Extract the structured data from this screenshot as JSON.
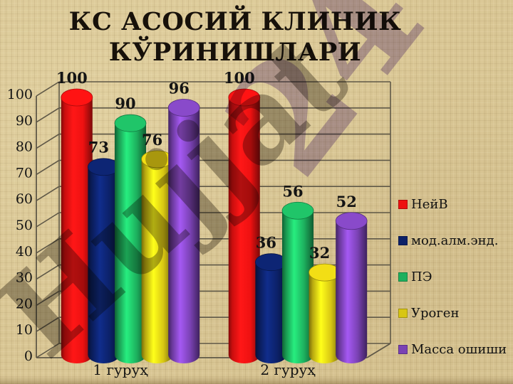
{
  "title": {
    "line1": "КС АСОСИЙ КЛИНИК",
    "line2": "КЎРИНИШЛАРИ"
  },
  "watermark": {
    "text": "Hujjat",
    "number": "24"
  },
  "background_color": "#d9c694",
  "chart_data": {
    "type": "bar",
    "style": "3d-cylinder",
    "title": "КС АСОСИЙ КЛИНИК КЎРИНИШЛАРИ",
    "categories": [
      "1 гуруҳ",
      "2 гуруҳ"
    ],
    "series": [
      {
        "name": "НейВ",
        "color": "#ee1111",
        "values": [
          100,
          100
        ]
      },
      {
        "name": "мод.алм.энд.",
        "color": "#0c2168",
        "values": [
          73,
          36
        ]
      },
      {
        "name": "ПЭ",
        "color": "#1db05e",
        "values": [
          90,
          56
        ]
      },
      {
        "name": "Уроген",
        "color": "#d8c613",
        "values": [
          76,
          32
        ]
      },
      {
        "name": "Масса ошиши",
        "color": "#7a42b4",
        "values": [
          96,
          52
        ]
      }
    ],
    "xlabel": "",
    "ylabel": "",
    "ylim": [
      0,
      100
    ],
    "yticks": [
      0,
      10,
      20,
      30,
      40,
      50,
      60,
      70,
      80,
      90,
      100
    ],
    "grid": true,
    "legend_position": "right",
    "axis_line_color": "#5f5847",
    "text_color": "#141414"
  }
}
